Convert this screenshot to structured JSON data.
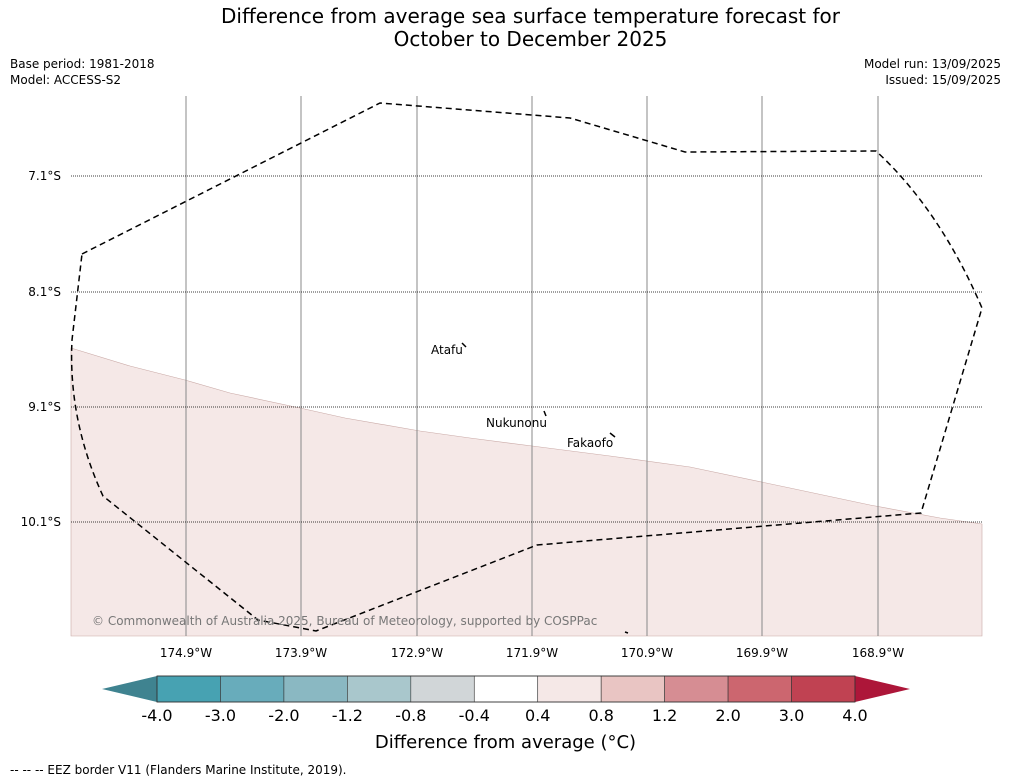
{
  "title": {
    "line1": "Difference from average sea surface temperature forecast for",
    "line2": "October to December 2025"
  },
  "meta": {
    "base_period": "Base period: 1981-2018",
    "model": "Model: ACCESS-S2",
    "model_run": "Model run: 13/09/2025",
    "issued": "Issued: 15/09/2025"
  },
  "map": {
    "latitudes": [
      "7.1°S",
      "8.1°S",
      "9.1°S",
      "10.1°S"
    ],
    "longitudes": [
      "174.9°W",
      "173.9°W",
      "172.9°W",
      "171.9°W",
      "170.9°W",
      "169.9°W",
      "168.9°W"
    ],
    "places": [
      "Atafu",
      "Nukunonu",
      "Fakaofo"
    ],
    "copyright": "© Commonwealth of Australia 2025, Bureau of Meteorology, supported by COSPPac",
    "anomaly_fill_color": "#f5e8e7",
    "eez_border_style": "dashed"
  },
  "colorbar": {
    "title": "Difference from average (°C)",
    "ticks": [
      "-4.0",
      "-3.0",
      "-2.0",
      "-1.2",
      "-0.8",
      "-0.4",
      "0.4",
      "0.8",
      "1.2",
      "2.0",
      "3.0",
      "4.0"
    ],
    "colors": [
      "#3f8390",
      "#47a2b2",
      "#68acbb",
      "#8ab8c2",
      "#a9c7cc",
      "#d1d6d8",
      "#ffffff",
      "#f5e8e7",
      "#e9c5c3",
      "#d68d93",
      "#cc666f",
      "#c04252",
      "#ad1639"
    ]
  },
  "source": "-- -- -- EEZ border V11 (Flanders Marine Institute, 2019)."
}
